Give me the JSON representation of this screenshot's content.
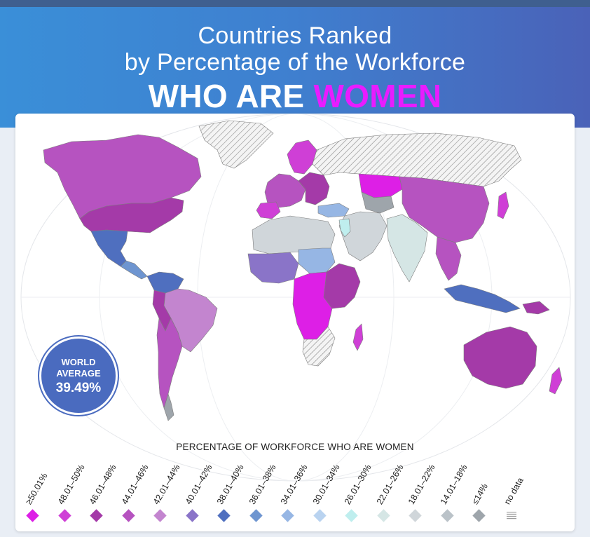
{
  "header": {
    "title_line1": "Countries Ranked",
    "title_line2": "by Percentage of the Workforce",
    "title_line3_a": "WHO ARE ",
    "title_line3_b": "WOMEN",
    "accent_color": "#e81cff"
  },
  "badge": {
    "line1": "WORLD",
    "line2": "AVERAGE",
    "value": "39.49%"
  },
  "legend": {
    "title": "PERCENTAGE OF WORKFORCE WHO ARE WOMEN",
    "items": [
      {
        "label": "≥50.01%",
        "color": "#dd1fe6"
      },
      {
        "label": "48.01–50%",
        "color": "#cf3fd6"
      },
      {
        "label": "46.01–48%",
        "color": "#a43aa8"
      },
      {
        "label": "44.01–46%",
        "color": "#b653c0"
      },
      {
        "label": "42.01–44%",
        "color": "#c385cf"
      },
      {
        "label": "40.01–42%",
        "color": "#8a74c8"
      },
      {
        "label": "38.01–40%",
        "color": "#4f6fbf"
      },
      {
        "label": "36.01–38%",
        "color": "#6e95d0"
      },
      {
        "label": "34.01–36%",
        "color": "#96b6e4"
      },
      {
        "label": "30.01–34%",
        "color": "#b9d3f0"
      },
      {
        "label": "26.01–30%",
        "color": "#bfeeee"
      },
      {
        "label": "22.01–26%",
        "color": "#d5e6e5"
      },
      {
        "label": "18.01–22%",
        "color": "#d0d6da"
      },
      {
        "label": "14.01–18%",
        "color": "#bac2c8"
      },
      {
        "label": "≤14%",
        "color": "#9ea5ab"
      },
      {
        "label": "no data",
        "color": "hatch"
      }
    ]
  }
}
